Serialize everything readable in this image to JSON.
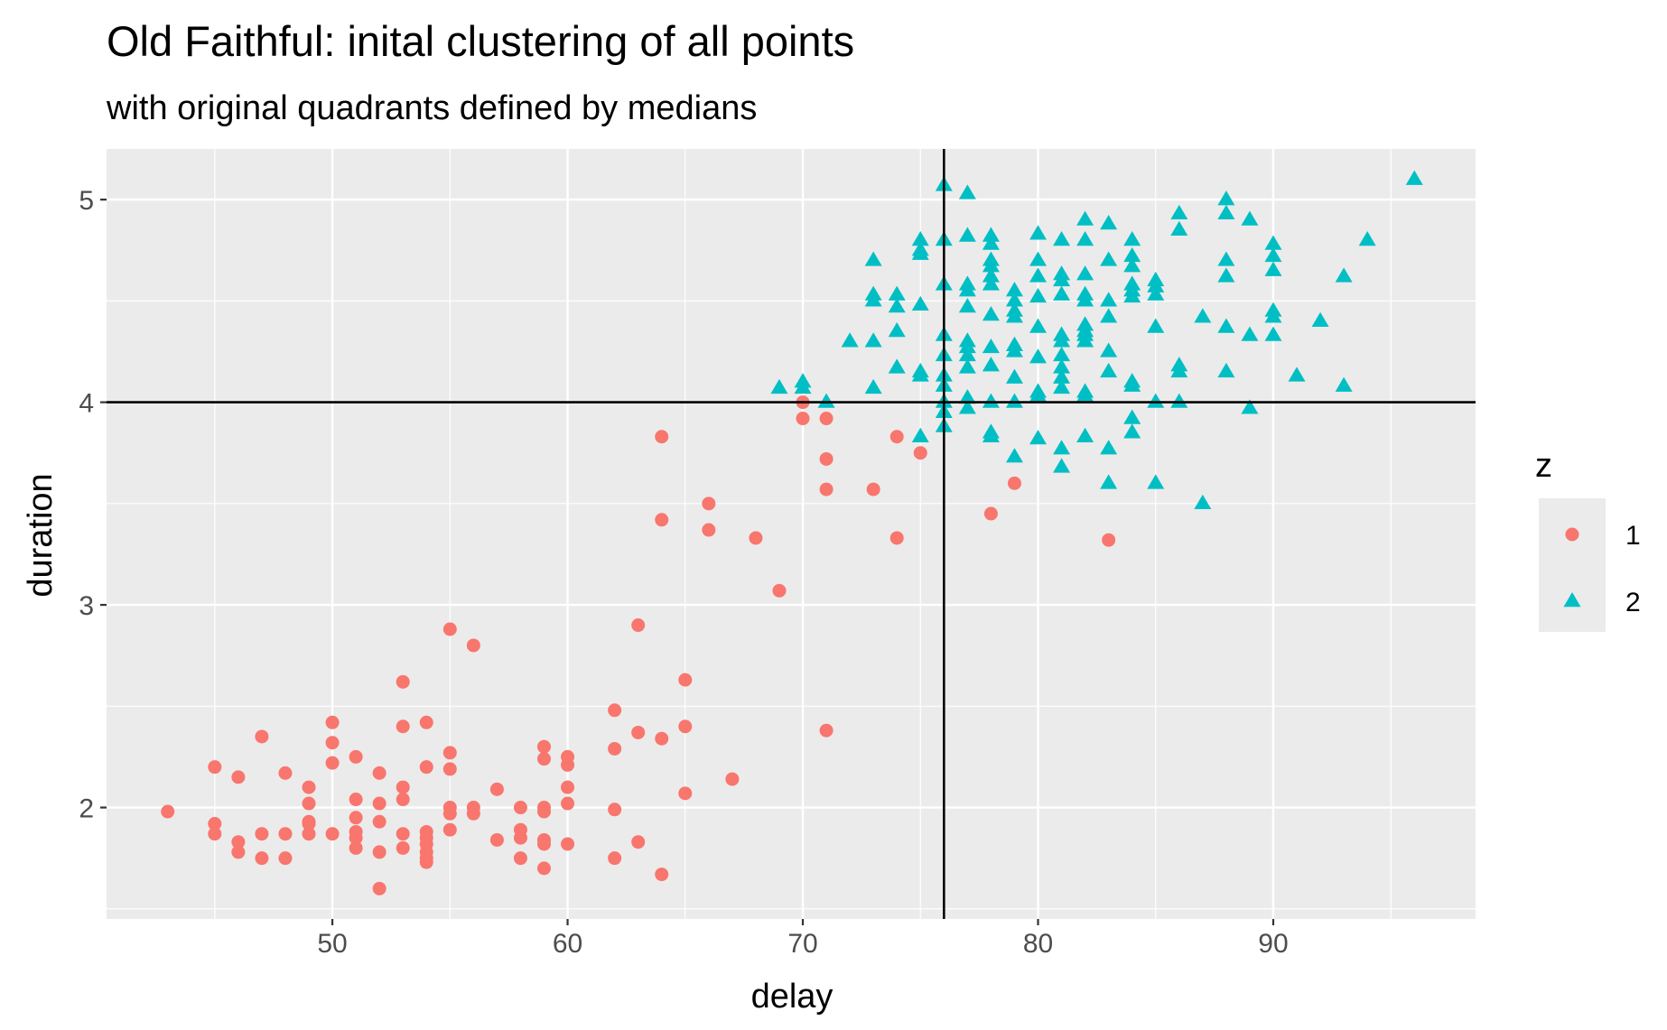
{
  "chart_data": {
    "type": "scatter",
    "title": "Old Faithful: inital clustering of all points",
    "subtitle": "with original quadrants defined by medians",
    "xlabel": "delay",
    "ylabel": "duration",
    "xlim": [
      40.4,
      98.6
    ],
    "ylim": [
      1.45,
      5.25
    ],
    "x_ticks": [
      50,
      60,
      70,
      80,
      90
    ],
    "y_ticks": [
      2,
      3,
      4,
      5
    ],
    "x_tick_labels": [
      "50",
      "60",
      "70",
      "80",
      "90"
    ],
    "y_tick_labels": [
      "2",
      "3",
      "4",
      "5"
    ],
    "grid": true,
    "panel_background": "#ebebeb",
    "grid_color": "#ffffff",
    "reference_lines": {
      "vertical_x": 76,
      "horizontal_y": 4,
      "color": "#000000"
    },
    "legend": {
      "title": "z",
      "position": "right",
      "entries": [
        {
          "label": "1",
          "color": "#F8766D",
          "shape": "circle"
        },
        {
          "label": "2",
          "color": "#00BFC4",
          "shape": "triangle"
        }
      ]
    },
    "series": [
      {
        "name": "1",
        "color": "#F8766D",
        "shape": "circle",
        "points": [
          [
            43,
            1.98
          ],
          [
            45,
            2.2
          ],
          [
            45,
            1.92
          ],
          [
            45,
            1.87
          ],
          [
            46,
            2.15
          ],
          [
            46,
            1.83
          ],
          [
            46,
            1.78
          ],
          [
            47,
            2.35
          ],
          [
            47,
            1.87
          ],
          [
            47,
            1.75
          ],
          [
            48,
            2.17
          ],
          [
            48,
            1.87
          ],
          [
            48,
            1.75
          ],
          [
            49,
            2.1
          ],
          [
            49,
            2.02
          ],
          [
            49,
            1.93
          ],
          [
            49,
            1.92
          ],
          [
            49,
            1.87
          ],
          [
            50,
            2.42
          ],
          [
            50,
            2.32
          ],
          [
            50,
            2.22
          ],
          [
            50,
            1.87
          ],
          [
            51,
            2.25
          ],
          [
            51,
            2.04
          ],
          [
            51,
            1.95
          ],
          [
            51,
            1.88
          ],
          [
            51,
            1.85
          ],
          [
            51,
            1.8
          ],
          [
            52,
            2.17
          ],
          [
            52,
            2.02
          ],
          [
            52,
            1.93
          ],
          [
            52,
            1.78
          ],
          [
            52,
            1.6
          ],
          [
            53,
            2.62
          ],
          [
            53,
            2.4
          ],
          [
            53,
            2.1
          ],
          [
            53,
            2.04
          ],
          [
            53,
            1.87
          ],
          [
            53,
            1.8
          ],
          [
            54,
            2.42
          ],
          [
            54,
            2.2
          ],
          [
            54,
            1.88
          ],
          [
            54,
            1.85
          ],
          [
            54,
            1.82
          ],
          [
            54,
            1.78
          ],
          [
            54,
            1.75
          ],
          [
            54,
            1.73
          ],
          [
            55,
            2.88
          ],
          [
            55,
            2.27
          ],
          [
            55,
            2.19
          ],
          [
            55,
            2.0
          ],
          [
            55,
            1.97
          ],
          [
            55,
            1.89
          ],
          [
            56,
            2.8
          ],
          [
            56,
            2.0
          ],
          [
            56,
            1.97
          ],
          [
            57,
            2.09
          ],
          [
            57,
            1.84
          ],
          [
            58,
            2.0
          ],
          [
            58,
            1.89
          ],
          [
            58,
            1.85
          ],
          [
            58,
            1.75
          ],
          [
            59,
            2.3
          ],
          [
            59,
            2.24
          ],
          [
            59,
            2.0
          ],
          [
            59,
            1.98
          ],
          [
            59,
            1.84
          ],
          [
            59,
            1.82
          ],
          [
            59,
            1.7
          ],
          [
            60,
            2.25
          ],
          [
            60,
            2.21
          ],
          [
            60,
            2.1
          ],
          [
            60,
            2.02
          ],
          [
            60,
            1.82
          ],
          [
            62,
            2.48
          ],
          [
            62,
            2.29
          ],
          [
            62,
            1.99
          ],
          [
            62,
            1.75
          ],
          [
            63,
            2.9
          ],
          [
            63,
            2.37
          ],
          [
            63,
            1.83
          ],
          [
            64,
            3.83
          ],
          [
            64,
            3.42
          ],
          [
            64,
            2.34
          ],
          [
            64,
            1.67
          ],
          [
            65,
            2.63
          ],
          [
            65,
            2.4
          ],
          [
            65,
            2.07
          ],
          [
            66,
            3.5
          ],
          [
            66,
            3.37
          ],
          [
            67,
            2.14
          ],
          [
            68,
            3.33
          ],
          [
            69,
            3.07
          ],
          [
            70,
            4.0
          ],
          [
            70,
            3.92
          ],
          [
            71,
            3.92
          ],
          [
            71,
            3.72
          ],
          [
            71,
            3.57
          ],
          [
            71,
            2.38
          ],
          [
            73,
            3.57
          ],
          [
            74,
            3.83
          ],
          [
            74,
            3.33
          ],
          [
            75,
            3.75
          ],
          [
            78,
            3.45
          ],
          [
            79,
            3.6
          ],
          [
            83,
            3.32
          ]
        ]
      },
      {
        "name": "2",
        "color": "#00BFC4",
        "shape": "triangle",
        "points": [
          [
            69,
            4.07
          ],
          [
            70,
            4.1
          ],
          [
            70,
            4.07
          ],
          [
            71,
            4.0
          ],
          [
            72,
            4.3
          ],
          [
            73,
            4.7
          ],
          [
            73,
            4.53
          ],
          [
            73,
            4.5
          ],
          [
            73,
            4.3
          ],
          [
            73,
            4.07
          ],
          [
            74,
            4.53
          ],
          [
            74,
            4.47
          ],
          [
            74,
            4.35
          ],
          [
            74,
            4.17
          ],
          [
            75,
            4.8
          ],
          [
            75,
            4.75
          ],
          [
            75,
            4.73
          ],
          [
            75,
            4.48
          ],
          [
            75,
            4.15
          ],
          [
            75,
            4.13
          ],
          [
            75,
            3.83
          ],
          [
            76,
            5.07
          ],
          [
            76,
            4.8
          ],
          [
            76,
            4.58
          ],
          [
            76,
            4.33
          ],
          [
            76,
            4.23
          ],
          [
            76,
            4.13
          ],
          [
            76,
            4.08
          ],
          [
            76,
            4.0
          ],
          [
            76,
            3.95
          ],
          [
            76,
            3.88
          ],
          [
            77,
            5.03
          ],
          [
            77,
            4.82
          ],
          [
            77,
            4.58
          ],
          [
            77,
            4.55
          ],
          [
            77,
            4.47
          ],
          [
            77,
            4.3
          ],
          [
            77,
            4.27
          ],
          [
            77,
            4.23
          ],
          [
            77,
            4.17
          ],
          [
            77,
            4.02
          ],
          [
            77,
            3.97
          ],
          [
            78,
            4.82
          ],
          [
            78,
            4.78
          ],
          [
            78,
            4.7
          ],
          [
            78,
            4.67
          ],
          [
            78,
            4.62
          ],
          [
            78,
            4.58
          ],
          [
            78,
            4.43
          ],
          [
            78,
            4.27
          ],
          [
            78,
            4.18
          ],
          [
            78,
            4.0
          ],
          [
            78,
            3.85
          ],
          [
            78,
            3.83
          ],
          [
            79,
            4.55
          ],
          [
            79,
            4.5
          ],
          [
            79,
            4.45
          ],
          [
            79,
            4.42
          ],
          [
            79,
            4.28
          ],
          [
            79,
            4.25
          ],
          [
            79,
            4.12
          ],
          [
            79,
            4.0
          ],
          [
            79,
            3.73
          ],
          [
            80,
            4.83
          ],
          [
            80,
            4.7
          ],
          [
            80,
            4.62
          ],
          [
            80,
            4.52
          ],
          [
            80,
            4.37
          ],
          [
            80,
            4.22
          ],
          [
            80,
            4.05
          ],
          [
            80,
            4.03
          ],
          [
            80,
            3.82
          ],
          [
            81,
            4.8
          ],
          [
            81,
            4.63
          ],
          [
            81,
            4.6
          ],
          [
            81,
            4.53
          ],
          [
            81,
            4.33
          ],
          [
            81,
            4.3
          ],
          [
            81,
            4.23
          ],
          [
            81,
            4.17
          ],
          [
            81,
            4.12
          ],
          [
            81,
            4.07
          ],
          [
            81,
            3.77
          ],
          [
            81,
            3.68
          ],
          [
            82,
            4.9
          ],
          [
            82,
            4.8
          ],
          [
            82,
            4.63
          ],
          [
            82,
            4.53
          ],
          [
            82,
            4.5
          ],
          [
            82,
            4.38
          ],
          [
            82,
            4.35
          ],
          [
            82,
            4.33
          ],
          [
            82,
            4.3
          ],
          [
            82,
            4.05
          ],
          [
            82,
            4.03
          ],
          [
            82,
            3.83
          ],
          [
            83,
            4.88
          ],
          [
            83,
            4.7
          ],
          [
            83,
            4.5
          ],
          [
            83,
            4.42
          ],
          [
            83,
            4.25
          ],
          [
            83,
            4.15
          ],
          [
            83,
            3.77
          ],
          [
            83,
            3.6
          ],
          [
            84,
            4.8
          ],
          [
            84,
            4.72
          ],
          [
            84,
            4.67
          ],
          [
            84,
            4.58
          ],
          [
            84,
            4.55
          ],
          [
            84,
            4.52
          ],
          [
            84,
            4.1
          ],
          [
            84,
            4.08
          ],
          [
            84,
            3.92
          ],
          [
            84,
            3.85
          ],
          [
            85,
            4.6
          ],
          [
            85,
            4.57
          ],
          [
            85,
            4.53
          ],
          [
            85,
            4.37
          ],
          [
            85,
            4.0
          ],
          [
            85,
            3.6
          ],
          [
            86,
            4.93
          ],
          [
            86,
            4.85
          ],
          [
            86,
            4.18
          ],
          [
            86,
            4.15
          ],
          [
            86,
            4.0
          ],
          [
            87,
            4.42
          ],
          [
            87,
            3.5
          ],
          [
            88,
            5.0
          ],
          [
            88,
            4.93
          ],
          [
            88,
            4.7
          ],
          [
            88,
            4.62
          ],
          [
            88,
            4.37
          ],
          [
            88,
            4.15
          ],
          [
            89,
            4.9
          ],
          [
            89,
            4.33
          ],
          [
            89,
            3.97
          ],
          [
            90,
            4.78
          ],
          [
            90,
            4.72
          ],
          [
            90,
            4.65
          ],
          [
            90,
            4.45
          ],
          [
            90,
            4.42
          ],
          [
            90,
            4.33
          ],
          [
            91,
            4.13
          ],
          [
            92,
            4.4
          ],
          [
            93,
            4.62
          ],
          [
            93,
            4.08
          ],
          [
            94,
            4.8
          ],
          [
            96,
            5.1
          ]
        ]
      }
    ]
  }
}
